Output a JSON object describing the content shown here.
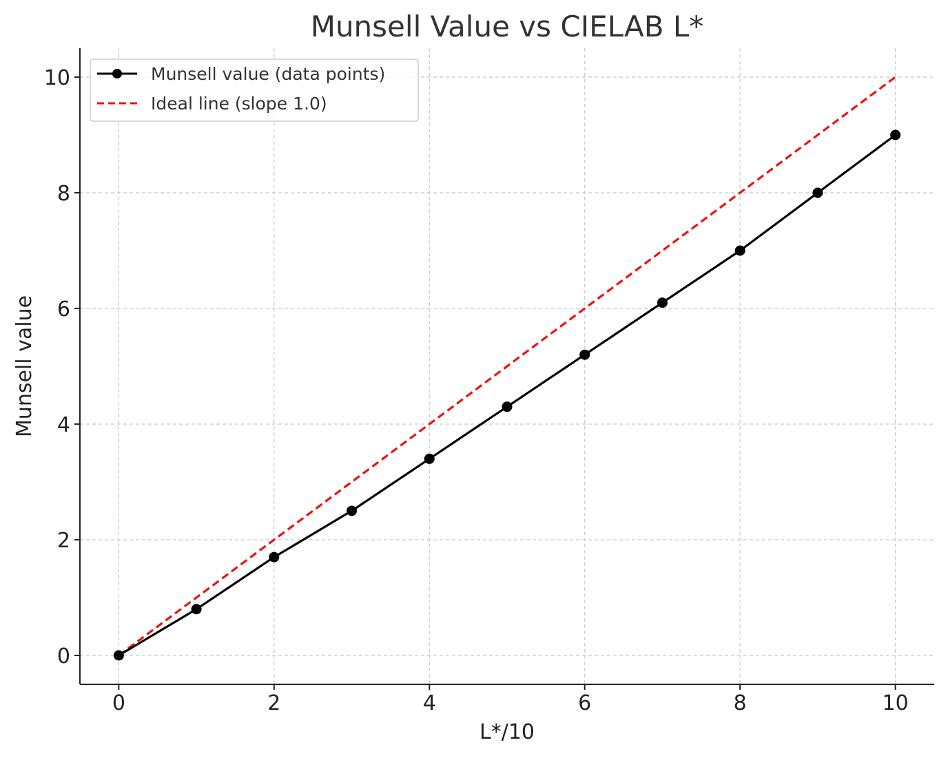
{
  "chart_data": {
    "type": "line",
    "title": "Munsell Value vs CIELAB L*",
    "xlabel": "L*/10",
    "ylabel": "Munsell value",
    "xlim": [
      -0.5,
      10.5
    ],
    "ylim": [
      -0.5,
      10.5
    ],
    "xticks": [
      0,
      2,
      4,
      6,
      8,
      10
    ],
    "yticks": [
      0,
      2,
      4,
      6,
      8,
      10
    ],
    "grid": true,
    "legend_position": "top-left",
    "series": [
      {
        "name": "Munsell value (data points)",
        "color": "#000000",
        "style": "solid-with-markers",
        "x": [
          0,
          1,
          2,
          3,
          4,
          5,
          6,
          7,
          8,
          9,
          10
        ],
        "y": [
          0,
          0.8,
          1.7,
          2.5,
          3.4,
          4.3,
          5.2,
          6.1,
          7.0,
          8.0,
          9.0
        ]
      },
      {
        "name": "Ideal line (slope 1.0)",
        "color": "#ee1111",
        "style": "dashed",
        "x": [
          0,
          10
        ],
        "y": [
          0,
          10
        ]
      }
    ]
  }
}
